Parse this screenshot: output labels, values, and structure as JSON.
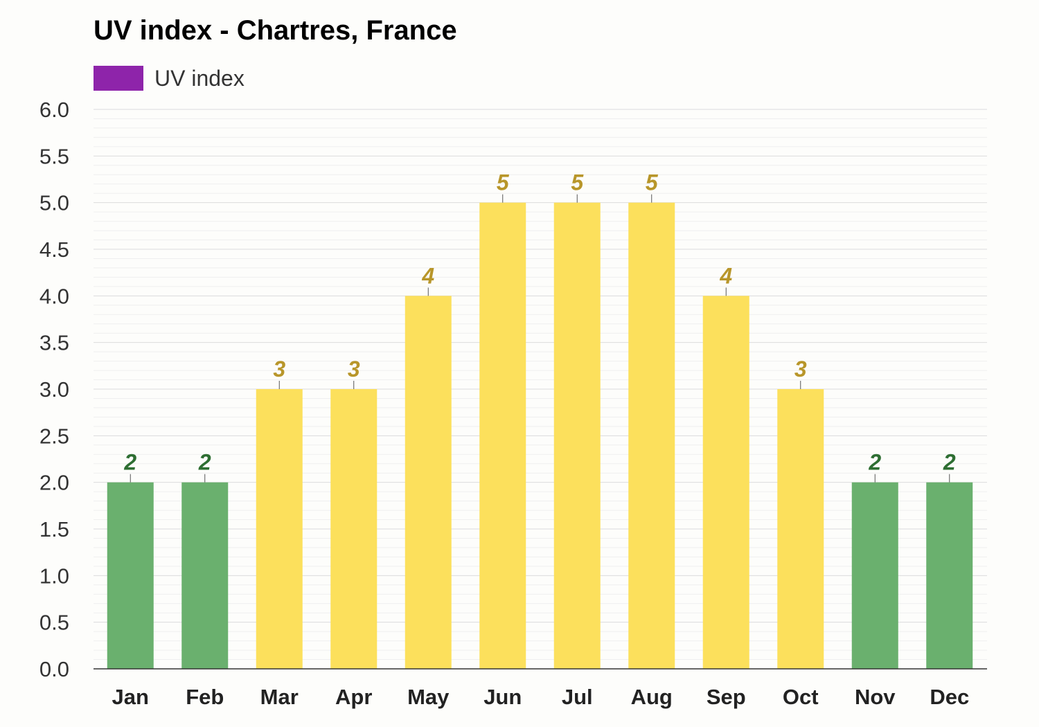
{
  "title": "UV index - Chartres, France",
  "legend": {
    "label": "UV index",
    "color": "#8e24aa"
  },
  "colors": {
    "low_bar": "#6ab06e",
    "low_label": "#2e6e32",
    "moderate_bar": "#fce05c",
    "moderate_label": "#b8962a",
    "gridline": "#e4e4e4",
    "axis": "#333333"
  },
  "chart_data": {
    "type": "bar",
    "title": "UV index - Chartres, France",
    "xlabel": "",
    "ylabel": "",
    "categories": [
      "Jan",
      "Feb",
      "Mar",
      "Apr",
      "May",
      "Jun",
      "Jul",
      "Aug",
      "Sep",
      "Oct",
      "Nov",
      "Dec"
    ],
    "series": [
      {
        "name": "UV index",
        "values": [
          2,
          2,
          3,
          3,
          4,
          5,
          5,
          5,
          4,
          3,
          2,
          2
        ]
      }
    ],
    "ylim": [
      0,
      6
    ],
    "yticks": [
      "0.0",
      "0.5",
      "1.0",
      "1.5",
      "2.0",
      "2.5",
      "3.0",
      "3.5",
      "4.0",
      "4.5",
      "5.0",
      "5.5",
      "6.0"
    ],
    "grid": true,
    "legend_position": "top-left"
  }
}
